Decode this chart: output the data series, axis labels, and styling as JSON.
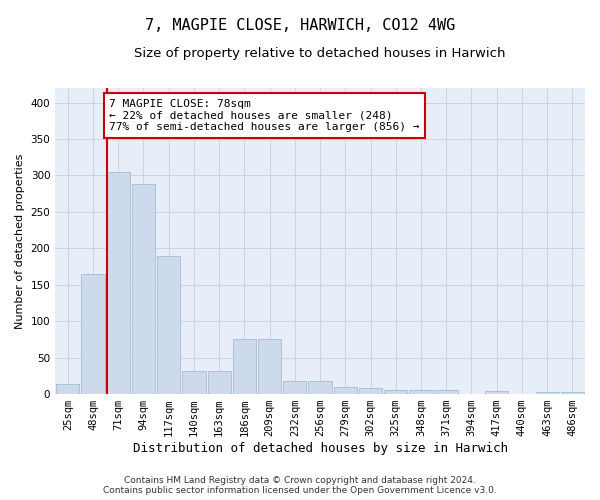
{
  "title": "7, MAGPIE CLOSE, HARWICH, CO12 4WG",
  "subtitle": "Size of property relative to detached houses in Harwich",
  "xlabel": "Distribution of detached houses by size in Harwich",
  "ylabel": "Number of detached properties",
  "categories": [
    "25sqm",
    "48sqm",
    "71sqm",
    "94sqm",
    "117sqm",
    "140sqm",
    "163sqm",
    "186sqm",
    "209sqm",
    "232sqm",
    "256sqm",
    "279sqm",
    "302sqm",
    "325sqm",
    "348sqm",
    "371sqm",
    "394sqm",
    "417sqm",
    "440sqm",
    "463sqm",
    "486sqm"
  ],
  "values": [
    14,
    165,
    305,
    288,
    190,
    32,
    32,
    75,
    75,
    18,
    18,
    10,
    8,
    5,
    5,
    5,
    0,
    4,
    0,
    3,
    3
  ],
  "bar_color": "#ccdaeb",
  "bar_edge_color": "#98b4cc",
  "annotation_text": "7 MAGPIE CLOSE: 78sqm\n← 22% of detached houses are smaller (248)\n77% of semi-detached houses are larger (856) →",
  "annotation_box_color": "white",
  "annotation_box_edge_color": "#cc0000",
  "red_line_color": "#cc0000",
  "grid_color": "#c8d4e8",
  "background_color": "#e8eef8",
  "footer_line1": "Contains HM Land Registry data © Crown copyright and database right 2024.",
  "footer_line2": "Contains public sector information licensed under the Open Government Licence v3.0.",
  "ylim": [
    0,
    420
  ],
  "yticks": [
    0,
    50,
    100,
    150,
    200,
    250,
    300,
    350,
    400
  ],
  "title_fontsize": 11,
  "subtitle_fontsize": 9.5,
  "xlabel_fontsize": 9,
  "ylabel_fontsize": 8,
  "tick_fontsize": 7.5,
  "annotation_fontsize": 8,
  "footer_fontsize": 6.5,
  "red_line_index": 2
}
